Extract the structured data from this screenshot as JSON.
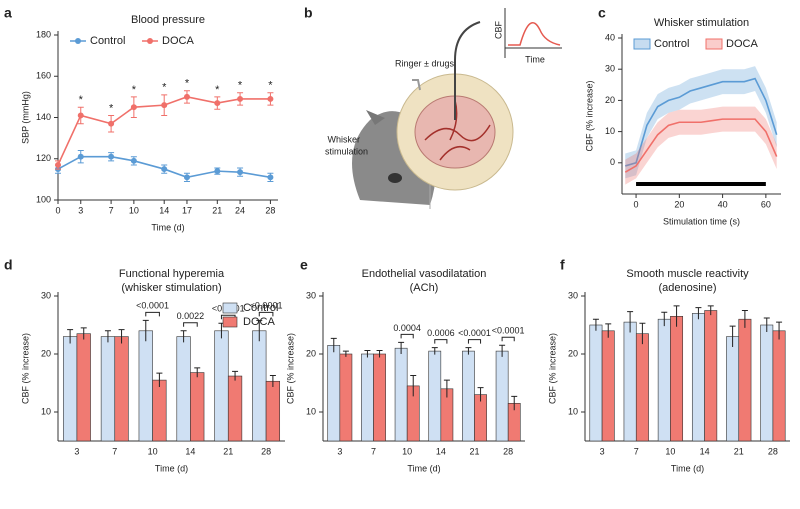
{
  "panels": [
    "a",
    "b",
    "c",
    "d",
    "e",
    "f"
  ],
  "diagram": {
    "ringer_label": "Ringer ± drugs",
    "whisker_label": [
      "Whisker",
      "stimulation"
    ],
    "cbf_label": "CBF",
    "time_label": "Time"
  },
  "chart_data": [
    {
      "type": "line",
      "title": "Blood pressure",
      "x_label": "Time (d)",
      "y_label": "SBP (mmHg)",
      "x": [
        0,
        3,
        7,
        10,
        14,
        17,
        21,
        24,
        28
      ],
      "xlim": [
        0,
        29
      ],
      "xticks": [
        0,
        3,
        7,
        10,
        14,
        17,
        21,
        24,
        28
      ],
      "ylim": [
        100,
        180
      ],
      "yticks": [
        100,
        120,
        140,
        160,
        180
      ],
      "markers": true,
      "error_style": "bar",
      "legend": "top-left",
      "annotations": [
        null,
        "*",
        "*",
        "*",
        "*",
        "*",
        "*",
        "*",
        "*"
      ],
      "series": [
        {
          "name": "Control",
          "color": "#5b9bd5",
          "values": [
            115,
            121,
            121,
            119,
            115,
            111,
            114,
            113.5,
            111
          ],
          "errors": [
            2,
            3,
            2,
            2,
            2,
            2,
            1.5,
            2,
            2
          ]
        },
        {
          "name": "DOCA",
          "color": "#f0706a",
          "values": [
            117,
            141,
            137,
            145,
            146,
            150,
            147,
            149,
            149
          ],
          "errors": [
            2,
            4,
            4,
            5,
            5,
            3,
            3,
            3,
            3
          ]
        }
      ]
    },
    {
      "type": "line",
      "title": "Whisker stimulation",
      "x_label": "Stimulation time (s)",
      "y_label": "CBF (% increase)",
      "x": [
        -5,
        0,
        5,
        10,
        15,
        20,
        25,
        30,
        35,
        40,
        45,
        50,
        55,
        60,
        65
      ],
      "xlim": [
        -6.5,
        67
      ],
      "xticks": [
        0,
        20,
        40,
        60
      ],
      "ylim": [
        -10,
        40
      ],
      "yticks": [
        0,
        10,
        20,
        30,
        40
      ],
      "markers": false,
      "error_style": "band",
      "legend": "top-left",
      "stimulus": [
        0,
        60
      ],
      "series": [
        {
          "name": "Control",
          "color": "#5b9bd5",
          "values": [
            -1,
            0,
            12,
            18,
            20,
            21,
            23,
            24,
            25,
            26,
            26,
            26,
            27,
            20,
            9
          ],
          "errors": [
            4,
            4,
            4,
            4,
            4,
            4,
            4,
            4,
            4,
            4,
            4,
            4,
            4,
            4,
            4
          ]
        },
        {
          "name": "DOCA",
          "color": "#f0706a",
          "values": [
            -3,
            -1,
            4,
            9,
            12,
            13,
            13,
            13,
            13.5,
            14,
            14,
            14,
            14,
            10,
            2
          ],
          "errors": [
            4,
            4,
            4,
            4,
            4,
            4,
            4,
            4,
            4,
            4,
            4,
            4,
            4,
            4,
            4
          ]
        }
      ]
    },
    {
      "type": "bar",
      "title": "Functional hyperemia",
      "subtitle": "(whisker stimulation)",
      "x_label": "Time (d)",
      "y_label": "CBF (% increase)",
      "categories": [
        "3",
        "7",
        "10",
        "14",
        "21",
        "28"
      ],
      "ylim": [
        5,
        30
      ],
      "yticks": [
        10,
        20,
        30
      ],
      "legend": "top-right",
      "pvalues": [
        null,
        null,
        "<0.0001",
        "0.0022",
        "<0.0001",
        "<0.0001"
      ],
      "series": [
        {
          "name": "Control",
          "color": "#cfe0f3",
          "values": [
            23,
            23,
            24,
            23,
            24,
            24
          ],
          "errors": [
            1.2,
            1,
            1.8,
            1,
            1.3,
            1.8
          ]
        },
        {
          "name": "DOCA",
          "color": "#f07a72",
          "values": [
            23.5,
            23,
            15.5,
            16.8,
            16.2,
            15.3
          ],
          "errors": [
            1,
            1.2,
            1.2,
            0.8,
            0.8,
            1
          ]
        }
      ]
    },
    {
      "type": "bar",
      "title": "Endothelial vasodilatation",
      "subtitle": "(ACh)",
      "x_label": "Time (d)",
      "y_label": "CBF (% increase)",
      "categories": [
        "3",
        "7",
        "10",
        "14",
        "21",
        "28"
      ],
      "ylim": [
        5,
        30
      ],
      "yticks": [
        10,
        20,
        30
      ],
      "pvalues": [
        null,
        null,
        "0.0004",
        "0.0006",
        "<0.0001",
        "<0.0001"
      ],
      "series": [
        {
          "color": "#cfe0f3",
          "values": [
            21.5,
            20,
            21,
            20.5,
            20.5,
            20.5
          ],
          "errors": [
            1.2,
            0.6,
            1,
            0.6,
            0.6,
            1
          ]
        },
        {
          "color": "#f07a72",
          "values": [
            20,
            20,
            14.5,
            14,
            13,
            11.5
          ],
          "errors": [
            0.5,
            0.6,
            1.8,
            1.5,
            1.2,
            1.2
          ]
        }
      ]
    },
    {
      "type": "bar",
      "title": "Smooth muscle reactivity",
      "subtitle": "(adenosine)",
      "x_label": "Time (d)",
      "y_label": "CBF (% increase)",
      "categories": [
        "3",
        "7",
        "10",
        "14",
        "21",
        "28"
      ],
      "ylim": [
        5,
        30
      ],
      "yticks": [
        10,
        20,
        30
      ],
      "series": [
        {
          "color": "#cfe0f3",
          "values": [
            25,
            25.5,
            26,
            27,
            23,
            25
          ],
          "errors": [
            1,
            1.8,
            1.2,
            1,
            1.8,
            1.2
          ]
        },
        {
          "color": "#f07a72",
          "values": [
            24,
            23.5,
            26.5,
            27.5,
            26,
            24
          ],
          "errors": [
            1.2,
            1.8,
            1.8,
            0.8,
            1.5,
            1.5
          ]
        }
      ]
    }
  ]
}
